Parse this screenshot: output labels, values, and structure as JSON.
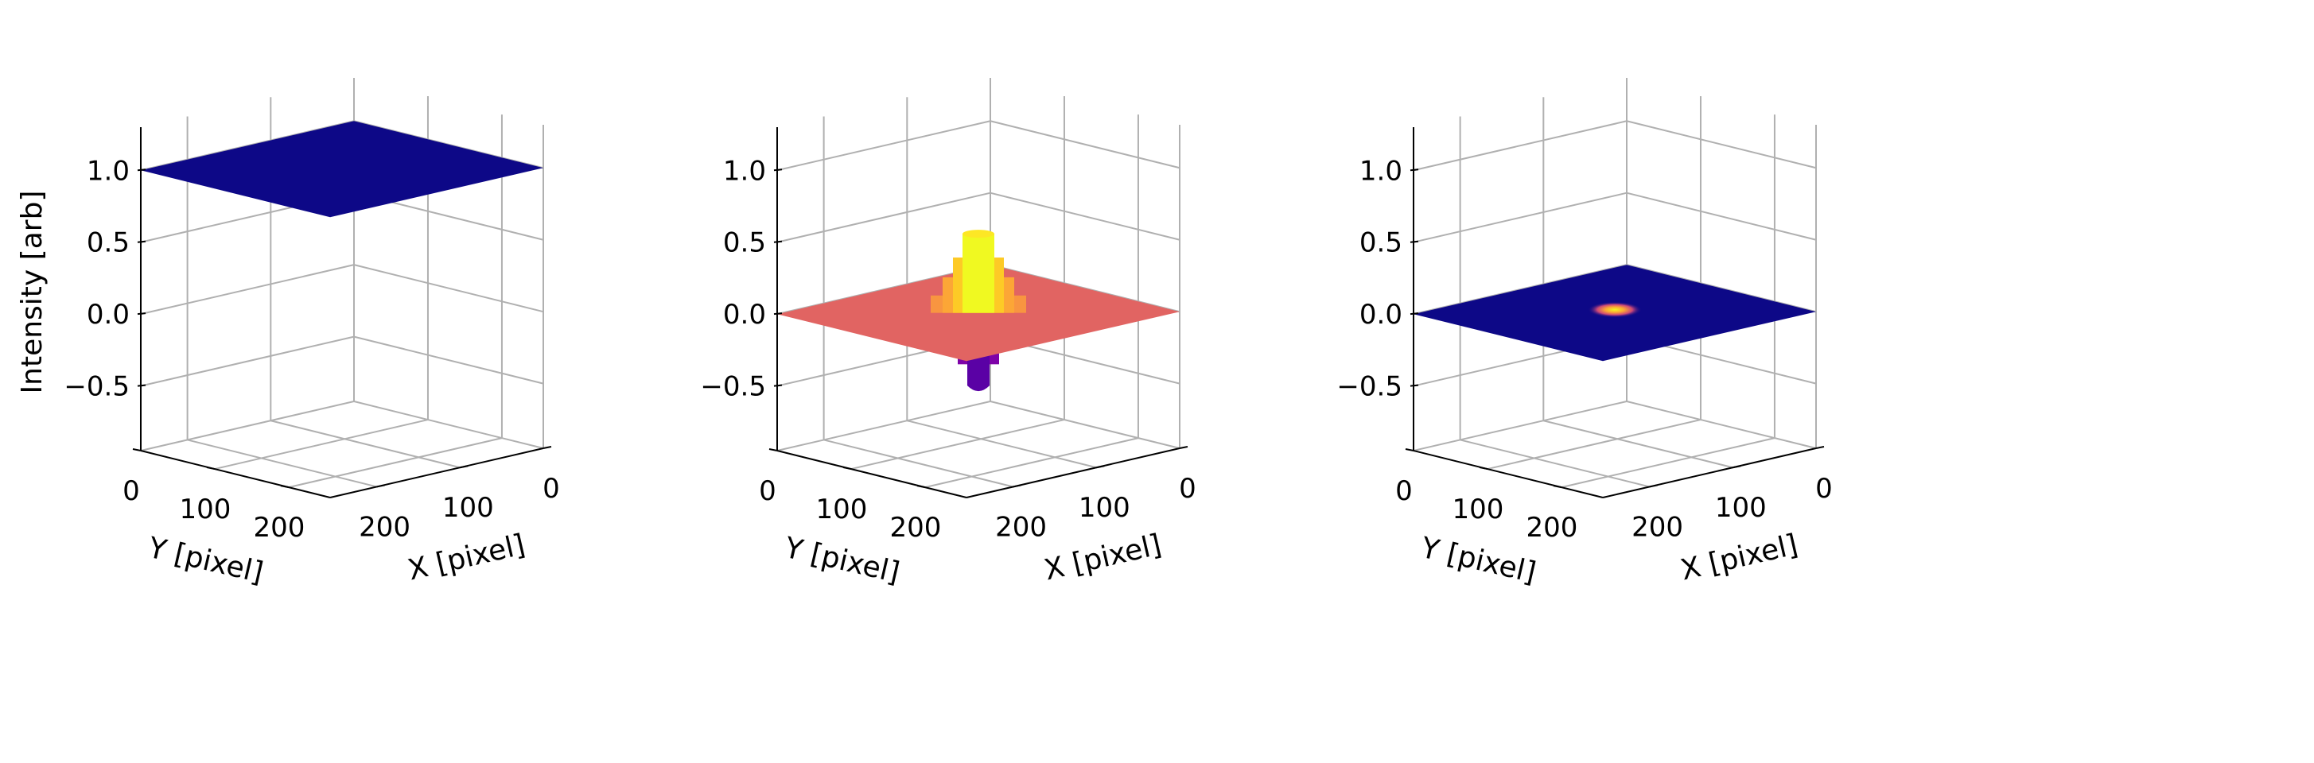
{
  "figure": {
    "panel_count": 3
  },
  "chart_data": [
    {
      "type": "surface",
      "panel": "left",
      "xlabel": "X [pixel]",
      "ylabel": "Y [pixel]",
      "zlabel": "Intensity [arb]",
      "x_ticks": [
        "0",
        "100",
        "200"
      ],
      "y_ticks": [
        "0",
        "100",
        "200"
      ],
      "z_ticks": [
        "−0.5",
        "0.0",
        "0.5",
        "1.0"
      ],
      "x_range": [
        0,
        256
      ],
      "y_range": [
        0,
        256
      ],
      "z_range": [
        -0.95,
        1.3
      ],
      "colormap": "plasma",
      "grid": true,
      "surface": {
        "shape": "flat",
        "level": 1.0,
        "color": "#0d0887"
      }
    },
    {
      "type": "surface",
      "panel": "middle",
      "xlabel": "X [pixel]",
      "ylabel": "Y [pixel]",
      "zlabel": "",
      "x_ticks": [
        "0",
        "100",
        "200"
      ],
      "y_ticks": [
        "0",
        "100",
        "200"
      ],
      "z_ticks": [
        "−0.5",
        "0.0",
        "0.5",
        "1.0"
      ],
      "x_range": [
        0,
        256
      ],
      "y_range": [
        0,
        256
      ],
      "z_range": [
        -0.95,
        1.3
      ],
      "colormap": "plasma",
      "grid": true,
      "surface": {
        "shape": "peak_and_trough",
        "baseline": 0.0,
        "peak_max": 0.55,
        "trough_min": -0.55,
        "baseline_color": "#e16462",
        "peak_color": "#f0f921",
        "trough_color": "#5a01a5"
      }
    },
    {
      "type": "surface",
      "panel": "right",
      "xlabel": "X [pixel]",
      "ylabel": "Y [pixel]",
      "zlabel": "",
      "x_ticks": [
        "0",
        "100",
        "200"
      ],
      "y_ticks": [
        "0",
        "100",
        "200"
      ],
      "z_ticks": [
        "−0.5",
        "0.0",
        "0.5",
        "1.0"
      ],
      "x_range": [
        0,
        256
      ],
      "y_range": [
        0,
        256
      ],
      "z_range": [
        -0.95,
        1.3
      ],
      "colormap": "plasma",
      "grid": true,
      "surface": {
        "shape": "small_bump",
        "baseline": 0.0,
        "peak_max": 0.05,
        "color": "#0d0887",
        "peak_color": "#f0f921"
      }
    }
  ]
}
